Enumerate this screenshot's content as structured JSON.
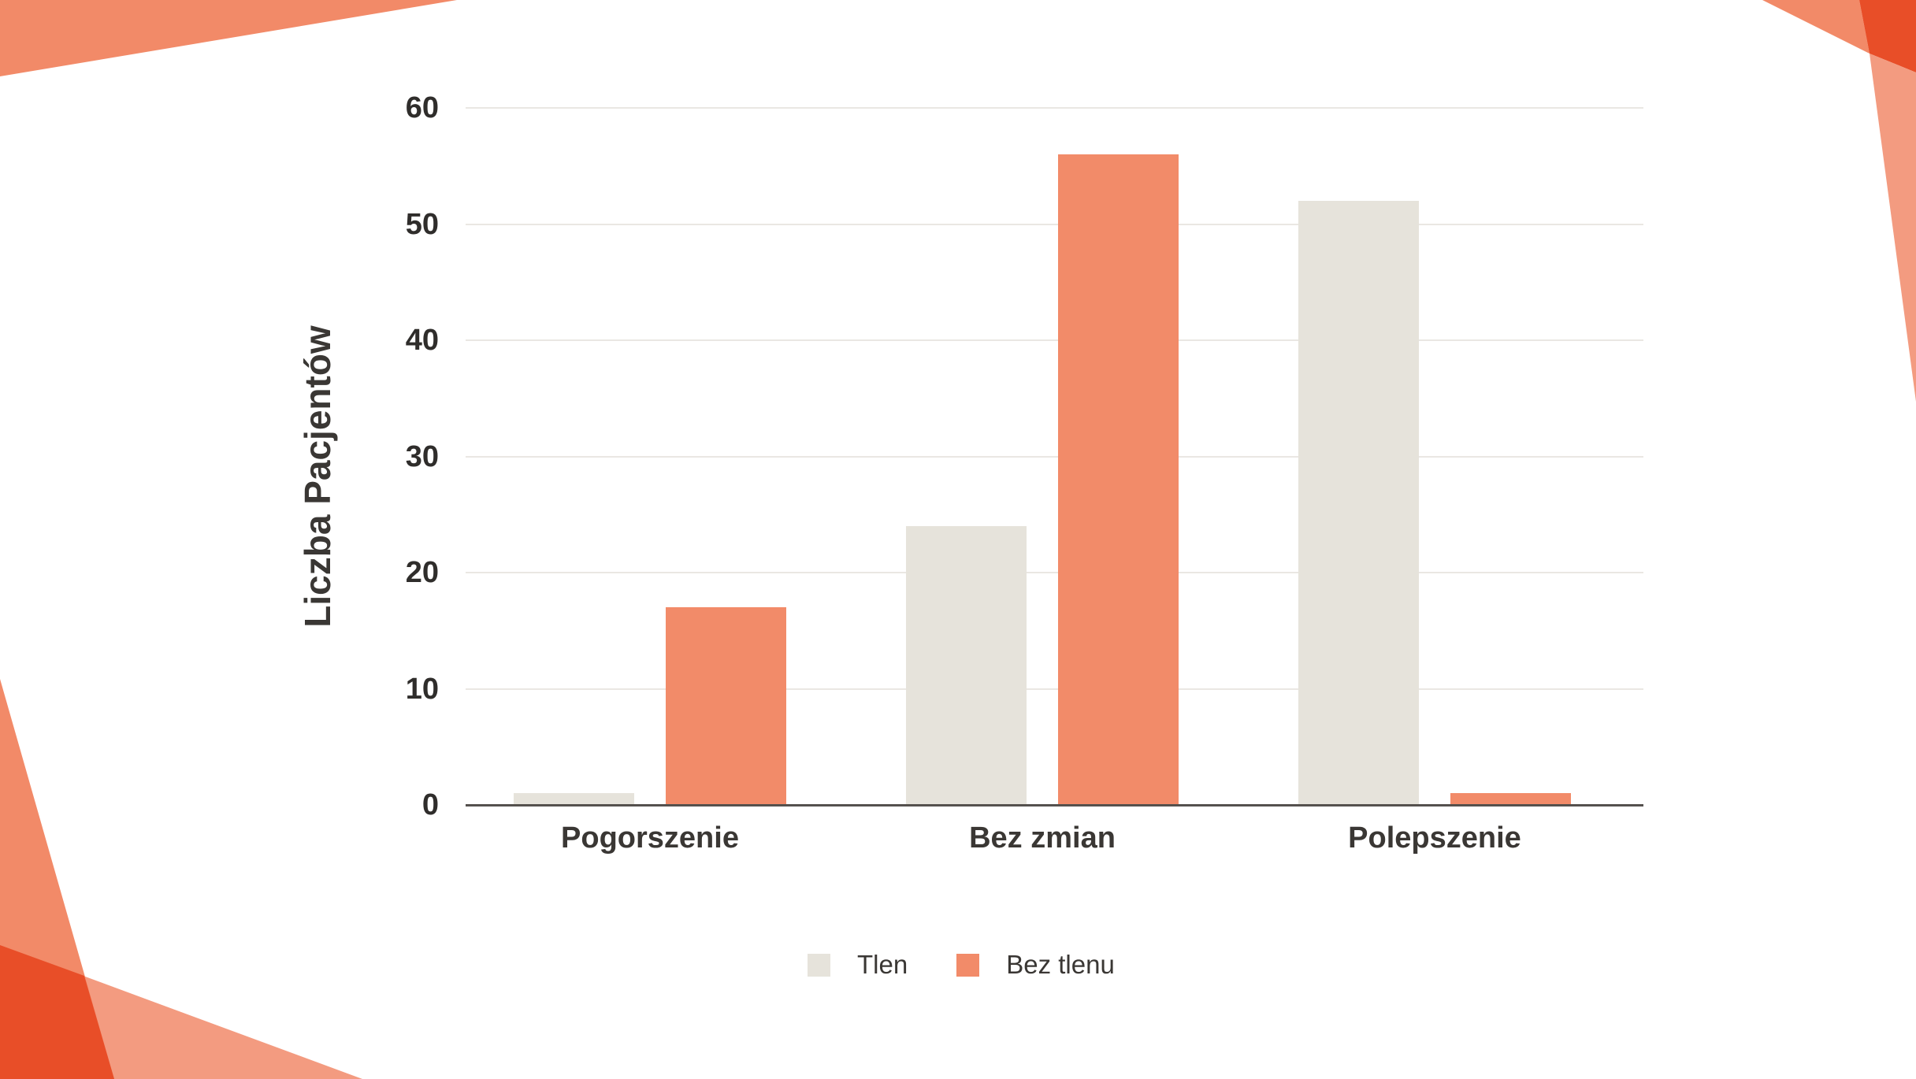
{
  "page": {
    "background": "#ffffff"
  },
  "decor": {
    "colors": {
      "salmon": "#F28A68",
      "light_salmon": "#F39B80",
      "dark_orange": "#E84E28"
    }
  },
  "chart_data": {
    "type": "bar",
    "title": "",
    "categories": [
      "Pogorszenie",
      "Bez zmian",
      "Polepszenie"
    ],
    "series": [
      {
        "name": "Tlen",
        "color": "#E6E3DB",
        "values": [
          1,
          24,
          52
        ]
      },
      {
        "name": "Bez tlenu",
        "color": "#F28B69",
        "values": [
          17,
          56,
          1
        ]
      }
    ],
    "xlabel": "",
    "ylabel": "Liczba Pacjentów",
    "ylim": [
      0,
      60
    ],
    "yticks": [
      0,
      10,
      20,
      30,
      40,
      50,
      60
    ],
    "grid": true,
    "legend_position": "bottom",
    "axis_color": "#55514E",
    "gridline_color": "#EAE7E3",
    "tick_color": "#2F2D2B",
    "label_color": "#3A3734"
  }
}
